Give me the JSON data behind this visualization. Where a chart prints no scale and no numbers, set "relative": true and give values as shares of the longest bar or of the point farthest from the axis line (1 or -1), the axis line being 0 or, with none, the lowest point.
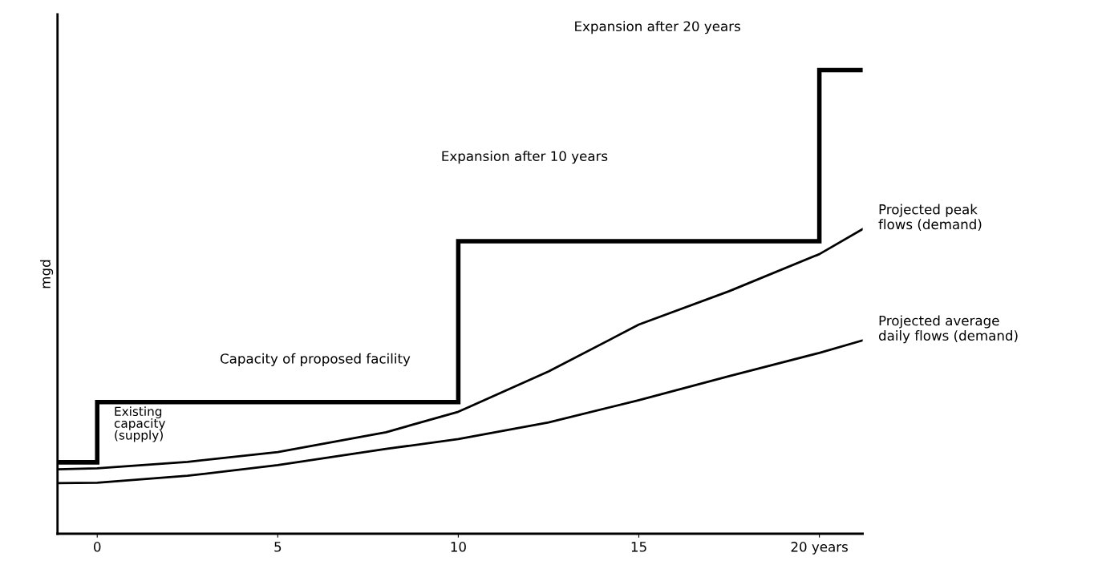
{
  "chart_data": {
    "type": "line",
    "relative": true,
    "ylabel": "mgd",
    "xlim": [
      -1.1,
      21.2
    ],
    "xticks": [
      0,
      5,
      10,
      15,
      {
        "value": 20,
        "label": "20 years"
      }
    ],
    "series": [
      {
        "type": "step",
        "color": "#000000",
        "x": [
          -1.1,
          0,
          10,
          20,
          21.2
        ],
        "values": [
          0.154,
          0.284,
          0.631,
          1.0,
          1.0
        ]
      },
      {
        "name": "Projected peak\nflows (demand)",
        "color": "#000000",
        "x": [
          -1.1,
          0,
          2.5,
          5,
          8,
          10,
          12.5,
          15,
          17.5,
          20,
          21.2
        ],
        "values": [
          0.139,
          0.141,
          0.155,
          0.176,
          0.219,
          0.263,
          0.35,
          0.451,
          0.523,
          0.603,
          0.657
        ]
      },
      {
        "name": "Projected average\ndaily flows (demand)",
        "color": "#000000",
        "x": [
          -1.1,
          0,
          2.5,
          5,
          8,
          10,
          12.5,
          15,
          17.5,
          20,
          21.2
        ],
        "values": [
          0.109,
          0.11,
          0.125,
          0.148,
          0.183,
          0.204,
          0.24,
          0.288,
          0.34,
          0.39,
          0.417
        ]
      }
    ],
    "annotations": [
      "Expansion after 20 years",
      "Expansion after 10 years",
      "Capacity of proposed facility",
      "Existing\ncapacity\n(supply)"
    ],
    "grid": false,
    "legend": false
  }
}
